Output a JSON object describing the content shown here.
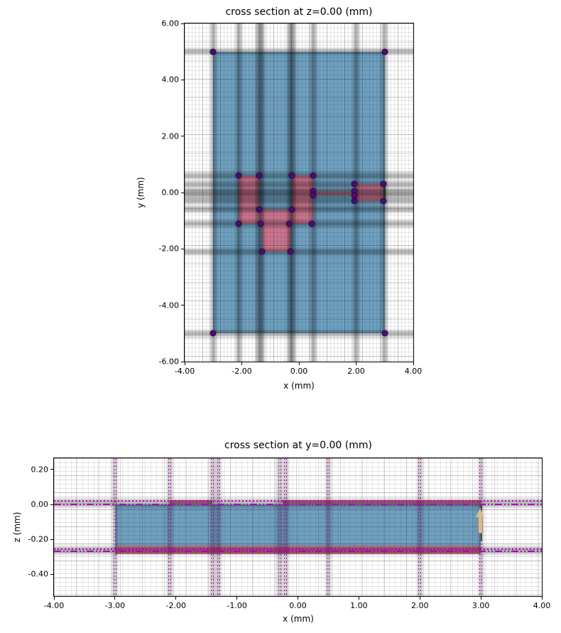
{
  "colors": {
    "substrate": "#6fa0bf",
    "metal": "#ca7590",
    "port": "#2e7d32",
    "dot_fill": "#4a0d72",
    "dot_edge": "#2a0545",
    "magenta": "#b400b4",
    "arrow_fill": "#d9bb93",
    "arrow_edge": "#9c8a68"
  },
  "chart_data": [
    {
      "id": "top",
      "type": "heatmap",
      "title": "cross section at z=0.00 (mm)",
      "xlabel": "x (mm)",
      "ylabel": "y (mm)",
      "xlim": [
        -4,
        4
      ],
      "ylim": [
        -6,
        6
      ],
      "grid": true,
      "xticks": [
        {
          "v": -4,
          "label": "-4.00"
        },
        {
          "v": -2,
          "label": "-2.00"
        },
        {
          "v": 0,
          "label": "0.00"
        },
        {
          "v": 2,
          "label": "2.00"
        },
        {
          "v": 4,
          "label": "4.00"
        }
      ],
      "yticks": [
        {
          "v": 6,
          "label": "6.00"
        },
        {
          "v": 4,
          "label": "4.00"
        },
        {
          "v": 2,
          "label": "2.00"
        },
        {
          "v": 0,
          "label": "0.00"
        },
        {
          "v": -2,
          "label": "-2.00"
        },
        {
          "v": -4,
          "label": "-4.00"
        },
        {
          "v": -6,
          "label": "-6.00"
        }
      ],
      "rects": [
        {
          "name": "substrate-rect",
          "color": "substrate",
          "x": [
            -3,
            3
          ],
          "y": [
            -5,
            5
          ]
        },
        {
          "name": "metal-strip-left",
          "color": "metal",
          "x": [
            -2.1,
            -1.4
          ],
          "y": [
            -1.1,
            0.6
          ]
        },
        {
          "name": "metal-strip-right",
          "color": "metal",
          "x": [
            -0.25,
            0.5
          ],
          "y": [
            -1.1,
            0.6
          ]
        },
        {
          "name": "metal-bridge",
          "color": "metal",
          "x": [
            -1.4,
            -0.25
          ],
          "y": [
            -1.1,
            -0.6
          ]
        },
        {
          "name": "metal-stub",
          "color": "metal",
          "x": [
            -1.3,
            -0.3
          ],
          "y": [
            -2.1,
            -1.1
          ]
        },
        {
          "name": "metal-feed-line",
          "color": "metal",
          "x": [
            0.5,
            1.95
          ],
          "y": [
            -0.07,
            0.05
          ]
        },
        {
          "name": "metal-feed-patch",
          "color": "metal",
          "x": [
            1.95,
            2.95
          ],
          "y": [
            -0.3,
            0.3
          ]
        },
        {
          "name": "port-line",
          "color": "port",
          "x": [
            2.95,
            3.02
          ],
          "y": [
            -0.3,
            0.3
          ]
        }
      ],
      "grid_bands": {
        "vertical": [
          -3,
          -2.1,
          -1.4,
          -1.3,
          -0.3,
          -0.2,
          0.5,
          2,
          3
        ],
        "horizontal": [
          5,
          0.6,
          0.3,
          0.05,
          -0.1,
          -0.3,
          -0.6,
          -1.1,
          -2.1,
          -5
        ]
      },
      "dots": [
        [
          -3,
          5
        ],
        [
          3,
          5
        ],
        [
          -3,
          -5
        ],
        [
          3,
          -5
        ],
        [
          -2.1,
          0.6
        ],
        [
          -1.4,
          0.6
        ],
        [
          -0.25,
          0.6
        ],
        [
          0.5,
          0.6
        ],
        [
          -1.4,
          -0.6
        ],
        [
          -0.25,
          -0.6
        ],
        [
          -2.1,
          -1.1
        ],
        [
          -1.35,
          -1.1
        ],
        [
          -0.35,
          -1.1
        ],
        [
          0.45,
          -1.1
        ],
        [
          -1.3,
          -2.1
        ],
        [
          -0.3,
          -2.1
        ],
        [
          0.5,
          0.05
        ],
        [
          0.5,
          -0.1
        ],
        [
          1.95,
          0.3
        ],
        [
          1.95,
          0.05
        ],
        [
          1.95,
          -0.1
        ],
        [
          1.95,
          -0.3
        ],
        [
          2.95,
          0.3
        ],
        [
          2.95,
          -0.3
        ]
      ]
    },
    {
      "id": "bottom",
      "type": "heatmap",
      "title": "cross section at y=0.00 (mm)",
      "xlabel": "x (mm)",
      "ylabel": "z (mm)",
      "xlim": [
        -4,
        4
      ],
      "ylim": [
        -0.525,
        0.265
      ],
      "grid": true,
      "xticks": [
        {
          "v": -4,
          "label": "-4.00"
        },
        {
          "v": -3,
          "label": "-3.00"
        },
        {
          "v": -2,
          "label": "-2.00"
        },
        {
          "v": -1,
          "label": "-1.00"
        },
        {
          "v": 0,
          "label": "0.00"
        },
        {
          "v": 1,
          "label": "1.00"
        },
        {
          "v": 2,
          "label": "2.00"
        },
        {
          "v": 3,
          "label": "3.00"
        },
        {
          "v": 4,
          "label": "4.00"
        }
      ],
      "yticks": [
        {
          "v": 0.2,
          "label": "0.20"
        },
        {
          "v": 0,
          "label": "0.00"
        },
        {
          "v": -0.2,
          "label": "-0.20"
        },
        {
          "v": -0.4,
          "label": "-0.40"
        }
      ],
      "rects": [
        {
          "name": "substrate-rect",
          "color": "substrate",
          "x": [
            -3,
            3
          ],
          "y": [
            -0.255,
            0
          ]
        },
        {
          "name": "metal-top-seg-left",
          "color": "metal",
          "x": [
            -2.1,
            -1.4
          ],
          "y": [
            0,
            0.025
          ]
        },
        {
          "name": "metal-top-seg-right",
          "color": "metal",
          "x": [
            -0.25,
            3
          ],
          "y": [
            0,
            0.025
          ]
        },
        {
          "name": "metal-ground-plane",
          "color": "metal",
          "x": [
            -3,
            3
          ],
          "y": [
            -0.285,
            -0.235
          ]
        },
        {
          "name": "port-line",
          "color": "port",
          "x": [
            2.995,
            3.02
          ],
          "y": [
            -0.21,
            0.005
          ]
        }
      ],
      "grid_bands": {
        "vertical": [
          -3,
          -2.1,
          -1.4,
          -1.3,
          -0.3,
          -0.2,
          0.5,
          2,
          3
        ],
        "horizontal": [
          0.02,
          0,
          -0.255,
          -0.27
        ]
      },
      "magenta_lines": {
        "dotted_h": [
          0.02,
          -0.255
        ],
        "dashdot_h": [
          0,
          -0.27
        ],
        "dotted_v": [
          -3,
          -2.1,
          -1.4,
          -1.3,
          -0.3,
          -0.2,
          0.5,
          2,
          3
        ]
      },
      "arrow": {
        "x": 2.99,
        "z0": -0.165,
        "z1": -0.02
      }
    }
  ]
}
